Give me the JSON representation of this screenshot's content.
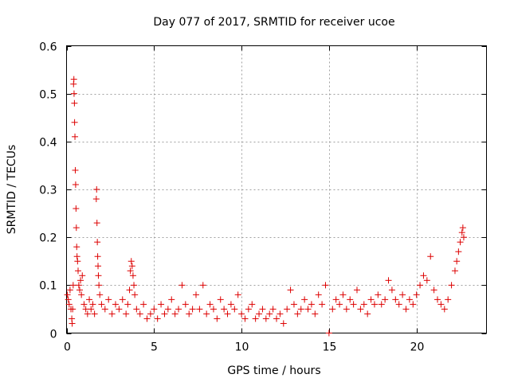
{
  "chart_data": {
    "type": "scatter",
    "title": "Day 077 of 2017, SRMTID for receiver ucoe",
    "xlabel": "GPS time / hours",
    "ylabel": "SRMTID / TECUs",
    "xlim": [
      0,
      24
    ],
    "ylim": [
      0,
      0.6
    ],
    "xticks": [
      0,
      5,
      10,
      15,
      20
    ],
    "yticks": [
      0,
      0.1,
      0.2,
      0.3,
      0.4,
      0.5,
      0.6
    ],
    "ytick_labels": [
      "0",
      "0.1",
      "0.2",
      "0.3",
      "0.4",
      "0.5",
      "0.6"
    ],
    "marker": "+",
    "color": "#dd0000",
    "grid": true,
    "series": [
      {
        "name": "SRMTID",
        "points": [
          [
            0.05,
            0.08
          ],
          [
            0.1,
            0.07
          ],
          [
            0.15,
            0.06
          ],
          [
            0.2,
            0.09
          ],
          [
            0.25,
            0.05
          ],
          [
            0.3,
            0.03
          ],
          [
            0.32,
            0.02
          ],
          [
            0.35,
            0.05
          ],
          [
            0.38,
            0.1
          ],
          [
            0.4,
            0.52
          ],
          [
            0.42,
            0.53
          ],
          [
            0.43,
            0.5
          ],
          [
            0.45,
            0.48
          ],
          [
            0.46,
            0.44
          ],
          [
            0.48,
            0.41
          ],
          [
            0.5,
            0.34
          ],
          [
            0.52,
            0.31
          ],
          [
            0.54,
            0.26
          ],
          [
            0.56,
            0.22
          ],
          [
            0.58,
            0.18
          ],
          [
            0.6,
            0.16
          ],
          [
            0.63,
            0.15
          ],
          [
            0.66,
            0.13
          ],
          [
            0.7,
            0.1
          ],
          [
            0.75,
            0.09
          ],
          [
            0.8,
            0.11
          ],
          [
            0.85,
            0.08
          ],
          [
            0.9,
            0.12
          ],
          [
            1.0,
            0.06
          ],
          [
            1.1,
            0.05
          ],
          [
            1.2,
            0.04
          ],
          [
            1.3,
            0.07
          ],
          [
            1.4,
            0.05
          ],
          [
            1.5,
            0.06
          ],
          [
            1.6,
            0.04
          ],
          [
            1.7,
            0.28
          ],
          [
            1.72,
            0.3
          ],
          [
            1.74,
            0.23
          ],
          [
            1.76,
            0.19
          ],
          [
            1.78,
            0.16
          ],
          [
            1.8,
            0.14
          ],
          [
            1.82,
            0.12
          ],
          [
            1.85,
            0.1
          ],
          [
            1.9,
            0.08
          ],
          [
            2.0,
            0.06
          ],
          [
            2.2,
            0.05
          ],
          [
            2.4,
            0.07
          ],
          [
            2.6,
            0.04
          ],
          [
            2.8,
            0.06
          ],
          [
            3.0,
            0.05
          ],
          [
            3.2,
            0.07
          ],
          [
            3.4,
            0.04
          ],
          [
            3.5,
            0.06
          ],
          [
            3.6,
            0.09
          ],
          [
            3.65,
            0.13
          ],
          [
            3.7,
            0.15
          ],
          [
            3.75,
            0.14
          ],
          [
            3.8,
            0.12
          ],
          [
            3.85,
            0.1
          ],
          [
            3.9,
            0.08
          ],
          [
            4.0,
            0.05
          ],
          [
            4.2,
            0.04
          ],
          [
            4.4,
            0.06
          ],
          [
            4.6,
            0.03
          ],
          [
            4.8,
            0.04
          ],
          [
            5.0,
            0.05
          ],
          [
            5.2,
            0.03
          ],
          [
            5.4,
            0.06
          ],
          [
            5.6,
            0.04
          ],
          [
            5.8,
            0.05
          ],
          [
            6.0,
            0.07
          ],
          [
            6.2,
            0.04
          ],
          [
            6.4,
            0.05
          ],
          [
            6.6,
            0.1
          ],
          [
            6.8,
            0.06
          ],
          [
            7.0,
            0.04
          ],
          [
            7.2,
            0.05
          ],
          [
            7.4,
            0.08
          ],
          [
            7.6,
            0.05
          ],
          [
            7.8,
            0.1
          ],
          [
            8.0,
            0.04
          ],
          [
            8.2,
            0.06
          ],
          [
            8.4,
            0.05
          ],
          [
            8.6,
            0.03
          ],
          [
            8.8,
            0.07
          ],
          [
            9.0,
            0.05
          ],
          [
            9.2,
            0.04
          ],
          [
            9.4,
            0.06
          ],
          [
            9.6,
            0.05
          ],
          [
            9.8,
            0.08
          ],
          [
            10.0,
            0.04
          ],
          [
            10.2,
            0.03
          ],
          [
            10.4,
            0.05
          ],
          [
            10.6,
            0.06
          ],
          [
            10.8,
            0.03
          ],
          [
            11.0,
            0.04
          ],
          [
            11.2,
            0.05
          ],
          [
            11.4,
            0.03
          ],
          [
            11.6,
            0.04
          ],
          [
            11.8,
            0.05
          ],
          [
            12.0,
            0.03
          ],
          [
            12.2,
            0.04
          ],
          [
            12.4,
            0.02
          ],
          [
            12.6,
            0.05
          ],
          [
            12.8,
            0.09
          ],
          [
            13.0,
            0.06
          ],
          [
            13.2,
            0.04
          ],
          [
            13.4,
            0.05
          ],
          [
            13.6,
            0.07
          ],
          [
            13.8,
            0.05
          ],
          [
            14.0,
            0.06
          ],
          [
            14.2,
            0.04
          ],
          [
            14.4,
            0.08
          ],
          [
            14.6,
            0.06
          ],
          [
            14.8,
            0.1
          ],
          [
            15.0,
            0.0
          ],
          [
            15.2,
            0.05
          ],
          [
            15.4,
            0.07
          ],
          [
            15.6,
            0.06
          ],
          [
            15.8,
            0.08
          ],
          [
            16.0,
            0.05
          ],
          [
            16.2,
            0.07
          ],
          [
            16.4,
            0.06
          ],
          [
            16.6,
            0.09
          ],
          [
            16.8,
            0.05
          ],
          [
            17.0,
            0.06
          ],
          [
            17.2,
            0.04
          ],
          [
            17.4,
            0.07
          ],
          [
            17.6,
            0.06
          ],
          [
            17.8,
            0.08
          ],
          [
            18.0,
            0.06
          ],
          [
            18.2,
            0.07
          ],
          [
            18.4,
            0.11
          ],
          [
            18.6,
            0.09
          ],
          [
            18.8,
            0.07
          ],
          [
            19.0,
            0.06
          ],
          [
            19.2,
            0.08
          ],
          [
            19.4,
            0.05
          ],
          [
            19.6,
            0.07
          ],
          [
            19.8,
            0.06
          ],
          [
            20.0,
            0.08
          ],
          [
            20.2,
            0.1
          ],
          [
            20.4,
            0.12
          ],
          [
            20.6,
            0.11
          ],
          [
            20.8,
            0.16
          ],
          [
            21.0,
            0.09
          ],
          [
            21.2,
            0.07
          ],
          [
            21.4,
            0.06
          ],
          [
            21.6,
            0.05
          ],
          [
            21.8,
            0.07
          ],
          [
            22.0,
            0.1
          ],
          [
            22.2,
            0.13
          ],
          [
            22.3,
            0.15
          ],
          [
            22.4,
            0.17
          ],
          [
            22.5,
            0.19
          ],
          [
            22.6,
            0.21
          ],
          [
            22.65,
            0.22
          ],
          [
            22.7,
            0.2
          ]
        ]
      }
    ]
  }
}
